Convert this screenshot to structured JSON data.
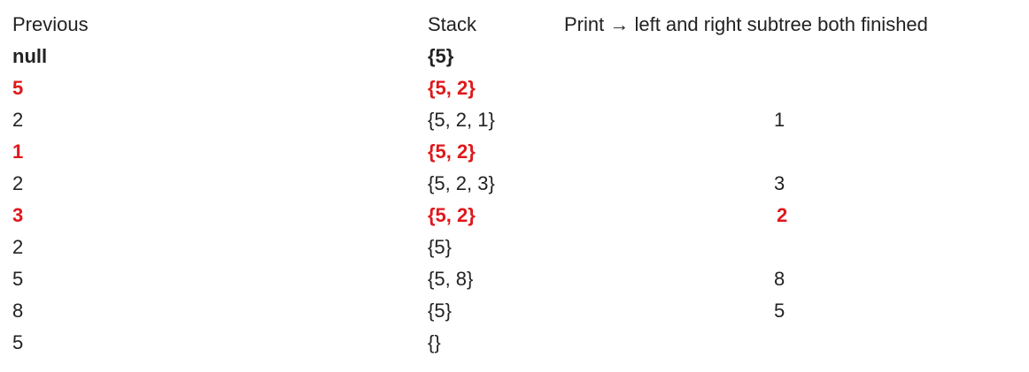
{
  "headers": {
    "previous": "Previous",
    "stack": "Stack",
    "print": "Print → left and right subtree both finished"
  },
  "rows": [
    {
      "previous": "null",
      "stack": "{5}",
      "print": "",
      "style": "bold"
    },
    {
      "previous": "5",
      "stack": "{5, 2}",
      "print": "",
      "style": "highlight"
    },
    {
      "previous": "2",
      "stack": "{5, 2, 1}",
      "print": "1",
      "style": "normal"
    },
    {
      "previous": "1",
      "stack": "{5, 2}",
      "print": "",
      "style": "highlight"
    },
    {
      "previous": "2",
      "stack": "{5, 2, 3}",
      "print": "3",
      "style": "normal"
    },
    {
      "previous": "3",
      "stack": "{5, 2}",
      "print": "2",
      "style": "highlight"
    },
    {
      "previous": "2",
      "stack": "{5}",
      "print": "",
      "style": "normal"
    },
    {
      "previous": "5",
      "stack": "{5, 8}",
      "print": "8",
      "style": "normal"
    },
    {
      "previous": "8",
      "stack": "{5}",
      "print": "5",
      "style": "normal"
    },
    {
      "previous": "5",
      "stack": "{}",
      "print": "",
      "style": "normal"
    }
  ],
  "colors": {
    "highlight": "#e0181b",
    "text": "#222222"
  }
}
